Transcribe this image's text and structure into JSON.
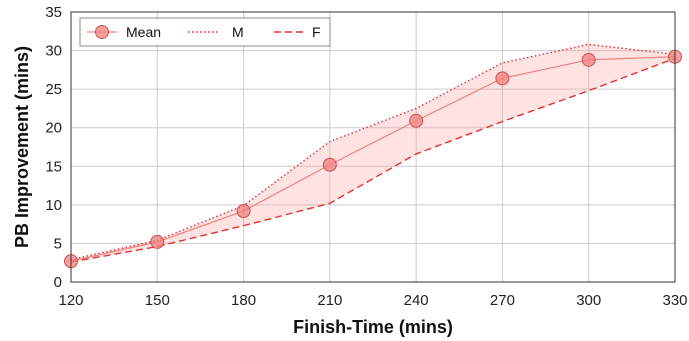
{
  "chart_data": {
    "type": "line",
    "title": "",
    "xlabel": "Finish-Time (mins)",
    "ylabel": "PB Improvement (mins)",
    "x": [
      120,
      150,
      180,
      210,
      240,
      270,
      300,
      330
    ],
    "xlim": [
      120,
      330
    ],
    "ylim": [
      0,
      35
    ],
    "xticks": [
      120,
      150,
      180,
      210,
      240,
      270,
      300,
      330
    ],
    "yticks": [
      0,
      5,
      10,
      15,
      20,
      25,
      30,
      35
    ],
    "grid": true,
    "legend_position": "top-left",
    "shaded_band": "between M and F",
    "series": [
      {
        "name": "Mean",
        "style": "solid line with circle markers",
        "color": "#f08080",
        "values": [
          2.7,
          5.2,
          9.2,
          15.2,
          20.9,
          26.4,
          28.8,
          29.2
        ]
      },
      {
        "name": "M",
        "style": "dotted",
        "color": "#e03030",
        "values": [
          2.9,
          5.4,
          9.9,
          18.2,
          22.5,
          28.4,
          30.8,
          29.5
        ]
      },
      {
        "name": "F",
        "style": "dashed",
        "color": "#e83030",
        "values": [
          2.6,
          4.6,
          7.3,
          10.2,
          16.6,
          20.8,
          24.8,
          29.0
        ]
      }
    ]
  }
}
